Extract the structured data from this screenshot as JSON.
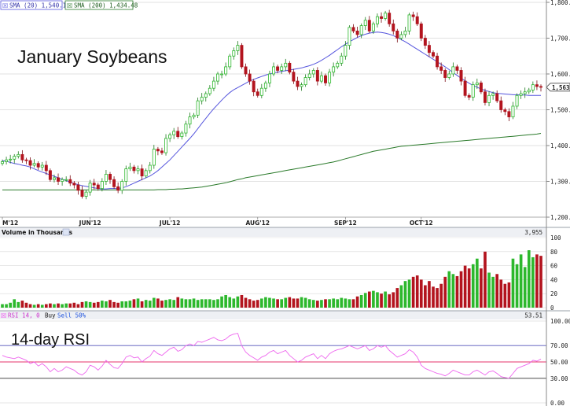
{
  "colors": {
    "up": "#2db82d",
    "down": "#b3141e",
    "sma20": "#5555dd",
    "sma200": "#2a7a2a",
    "rsi": "#ee66ee",
    "rsi_mid": "#e6336b",
    "rsi_band": "#5555bb",
    "grid": "#d9d9d9"
  },
  "legend": {
    "sma20": "SMA (20) 1,540.19",
    "sma200": "SMA (200) 1,434.48"
  },
  "annotations": {
    "price_title": "January Soybeans",
    "rsi_title": "14-day RSI"
  },
  "volume_panel": {
    "label": "Volume in Thousands",
    "last_value": "3,955"
  },
  "rsi_panel": {
    "label_prefix": "RSI 14, 0",
    "label_buy": "Buy",
    "label_sell": "Sell 50%",
    "last_value": "53.51"
  },
  "chart_data": [
    {
      "type": "candlestick",
      "title": "January Soybeans",
      "ylim": [
        1200,
        1800
      ],
      "yticks": [
        1200,
        1300,
        1400,
        1500,
        1600,
        1700,
        1800
      ],
      "ytick_labels": [
        "1,200.0",
        "1,300.0",
        "1,400.0",
        "1,500.0",
        "1,600.0",
        "1,700.0",
        "1,800.0"
      ],
      "last_price_label": "1,563.0",
      "month_labels": [
        {
          "label": "M'12",
          "index": 0
        },
        {
          "label": "JUN'12",
          "index": 22
        },
        {
          "label": "JUL'12",
          "index": 42
        },
        {
          "label": "AUG'12",
          "index": 64
        },
        {
          "label": "SEP'12",
          "index": 86
        },
        {
          "label": "OCT'12",
          "index": 105
        }
      ],
      "close": [
        1355,
        1360,
        1362,
        1370,
        1375,
        1360,
        1358,
        1345,
        1350,
        1340,
        1345,
        1330,
        1305,
        1310,
        1300,
        1305,
        1305,
        1295,
        1290,
        1275,
        1258,
        1270,
        1295,
        1290,
        1280,
        1300,
        1320,
        1305,
        1285,
        1275,
        1300,
        1335,
        1340,
        1330,
        1335,
        1315,
        1330,
        1345,
        1390,
        1385,
        1380,
        1420,
        1430,
        1440,
        1425,
        1435,
        1460,
        1480,
        1485,
        1525,
        1535,
        1545,
        1560,
        1580,
        1600,
        1600,
        1620,
        1650,
        1665,
        1680,
        1620,
        1600,
        1580,
        1550,
        1540,
        1560,
        1575,
        1600,
        1620,
        1610,
        1620,
        1630,
        1605,
        1580,
        1565,
        1570,
        1590,
        1600,
        1610,
        1580,
        1595,
        1575,
        1605,
        1620,
        1630,
        1650,
        1680,
        1730,
        1720,
        1710,
        1735,
        1750,
        1720,
        1740,
        1760,
        1755,
        1770,
        1740,
        1720,
        1700,
        1710,
        1720,
        1765,
        1760,
        1740,
        1700,
        1680,
        1660,
        1650,
        1620,
        1610,
        1590,
        1600,
        1620,
        1610,
        1580,
        1540,
        1535,
        1570,
        1575,
        1550,
        1520,
        1540,
        1545,
        1525,
        1500,
        1495,
        1480,
        1510,
        1540,
        1545,
        1550,
        1555,
        1570,
        1565,
        1563
      ],
      "sma20": [
        1358,
        1356,
        1353,
        1350,
        1348,
        1345,
        1343,
        1340,
        1335,
        1330,
        1326,
        1322,
        1318,
        1314,
        1310,
        1306,
        1302,
        1298,
        1294,
        1291,
        1288,
        1286,
        1284,
        1282,
        1280,
        1279,
        1279,
        1280,
        1280,
        1280,
        1282,
        1285,
        1290,
        1295,
        1300,
        1305,
        1310,
        1315,
        1322,
        1330,
        1340,
        1350,
        1360,
        1372,
        1384,
        1396,
        1408,
        1420,
        1433,
        1447,
        1462,
        1476,
        1490,
        1503,
        1515,
        1527,
        1538,
        1548,
        1556,
        1562,
        1568,
        1574,
        1580,
        1585,
        1589,
        1593,
        1597,
        1600,
        1603,
        1605,
        1607,
        1609,
        1611,
        1613,
        1615,
        1617,
        1620,
        1623,
        1627,
        1632,
        1638,
        1645,
        1652,
        1660,
        1668,
        1676,
        1683,
        1690,
        1696,
        1702,
        1707,
        1711,
        1714,
        1716,
        1717,
        1716,
        1714,
        1711,
        1707,
        1702,
        1696,
        1690,
        1683,
        1676,
        1669,
        1662,
        1655,
        1648,
        1641,
        1634,
        1627,
        1620,
        1612,
        1604,
        1596,
        1588,
        1581,
        1574,
        1568,
        1563,
        1558,
        1554,
        1551,
        1548,
        1546,
        1545,
        1544,
        1543,
        1542,
        1542,
        1541,
        1541,
        1540,
        1540,
        1540,
        1540
      ],
      "sma200": [
        1276,
        1276,
        1276,
        1276,
        1276,
        1276,
        1276,
        1276,
        1276,
        1276,
        1276,
        1276,
        1276,
        1276,
        1276,
        1276,
        1276,
        1276,
        1276,
        1276,
        1276,
        1276,
        1276,
        1276,
        1276,
        1276,
        1276,
        1276,
        1276,
        1276,
        1276,
        1276,
        1276,
        1276,
        1276,
        1276,
        1276,
        1276,
        1276,
        1277,
        1277,
        1277,
        1278,
        1278,
        1279,
        1279,
        1280,
        1281,
        1282,
        1283,
        1284,
        1286,
        1288,
        1290,
        1292,
        1294,
        1296,
        1299,
        1302,
        1305,
        1307,
        1310,
        1312,
        1314,
        1316,
        1318,
        1320,
        1322,
        1324,
        1326,
        1328,
        1330,
        1332,
        1334,
        1336,
        1338,
        1340,
        1342,
        1344,
        1346,
        1348,
        1350,
        1352,
        1354,
        1357,
        1360,
        1363,
        1366,
        1369,
        1372,
        1375,
        1378,
        1381,
        1384,
        1386,
        1388,
        1390,
        1392,
        1394,
        1396,
        1398,
        1399,
        1400,
        1401,
        1402,
        1403,
        1404,
        1405,
        1406,
        1407,
        1408,
        1409,
        1410,
        1411,
        1412,
        1413,
        1414,
        1415,
        1416,
        1417,
        1418,
        1419,
        1420,
        1421,
        1422,
        1423,
        1424,
        1425,
        1426,
        1427,
        1428,
        1429,
        1430,
        1431,
        1432,
        1434
      ]
    },
    {
      "type": "bar",
      "title": "Volume in Thousands",
      "ylim": [
        0,
        100
      ],
      "yticks": [
        0,
        20,
        40,
        60,
        80,
        100
      ],
      "values": [
        5,
        5,
        7,
        12,
        8,
        10,
        7,
        5,
        4,
        5,
        4,
        5,
        6,
        5,
        6,
        5,
        6,
        6,
        7,
        5,
        8,
        9,
        8,
        7,
        8,
        10,
        9,
        11,
        8,
        7,
        9,
        9,
        10,
        12,
        13,
        9,
        11,
        10,
        14,
        13,
        10,
        11,
        12,
        11,
        15,
        13,
        12,
        12,
        13,
        11,
        12,
        12,
        12,
        11,
        12,
        16,
        18,
        15,
        13,
        16,
        18,
        14,
        12,
        10,
        11,
        13,
        15,
        14,
        13,
        12,
        12,
        14,
        15,
        13,
        13,
        15,
        14,
        12,
        11,
        10,
        11,
        12,
        12,
        13,
        12,
        14,
        13,
        12,
        12,
        16,
        18,
        21,
        23,
        24,
        22,
        20,
        23,
        19,
        22,
        28,
        32,
        38,
        40,
        44,
        46,
        40,
        32,
        38,
        30,
        28,
        34,
        44,
        52,
        48,
        45,
        52,
        60,
        56,
        62,
        70,
        56,
        80,
        50,
        44,
        48,
        40,
        34,
        36,
        70,
        62,
        76,
        58,
        82,
        72,
        76,
        74
      ],
      "last_value_label": "3,955"
    },
    {
      "type": "line",
      "title": "RSI 14, 0",
      "ylim": [
        0,
        100
      ],
      "yticks": [
        0,
        30,
        50,
        70,
        100
      ],
      "ytick_labels": [
        "0.00",
        "30.00",
        "50.00",
        "70.00",
        "100.00"
      ],
      "values": [
        58,
        56,
        55,
        54,
        56,
        54,
        52,
        48,
        50,
        45,
        48,
        44,
        38,
        42,
        38,
        40,
        44,
        42,
        40,
        36,
        34,
        38,
        46,
        44,
        40,
        45,
        52,
        47,
        43,
        42,
        48,
        56,
        58,
        55,
        56,
        50,
        54,
        57,
        64,
        60,
        58,
        62,
        66,
        68,
        63,
        65,
        70,
        72,
        70,
        75,
        74,
        76,
        78,
        80,
        77,
        76,
        78,
        82,
        84,
        85,
        70,
        62,
        58,
        55,
        52,
        56,
        58,
        62,
        64,
        60,
        62,
        64,
        58,
        54,
        50,
        52,
        56,
        58,
        60,
        54,
        58,
        54,
        60,
        63,
        65,
        66,
        68,
        70,
        68,
        66,
        68,
        70,
        64,
        66,
        70,
        68,
        70,
        64,
        60,
        56,
        58,
        60,
        65,
        62,
        56,
        46,
        42,
        40,
        38,
        36,
        35,
        33,
        36,
        40,
        38,
        36,
        34,
        34,
        38,
        40,
        37,
        34,
        38,
        39,
        36,
        32,
        31,
        30,
        36,
        42,
        44,
        46,
        48,
        52,
        51,
        53.51
      ],
      "mid_line": 50,
      "bands": [
        30,
        70
      ],
      "last_value_label": "53.51"
    }
  ]
}
